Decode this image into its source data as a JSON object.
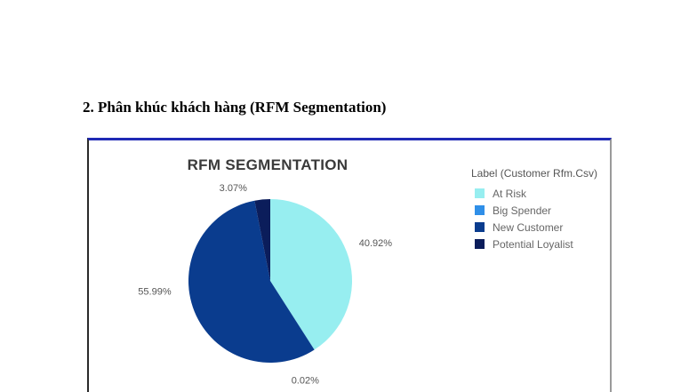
{
  "document": {
    "heading": "2. Phân khúc khách hàng (RFM Segmentation)"
  },
  "chart_data": {
    "type": "pie",
    "title": "RFM SEGMENTATION",
    "legend_title": "Label (Customer Rfm.Csv)",
    "legend_position": "right",
    "slices": [
      {
        "name": "At Risk",
        "value": 40.92,
        "label": "40.92%",
        "color": "#97eef0"
      },
      {
        "name": "Big Spender",
        "value": 0.02,
        "label": "0.02%",
        "color": "#2f8fe8"
      },
      {
        "name": "New Customer",
        "value": 55.99,
        "label": "55.99%",
        "color": "#0a3c8e"
      },
      {
        "name": "Potential Loyalist",
        "value": 3.07,
        "label": "3.07%",
        "color": "#0b1d5b"
      }
    ]
  }
}
